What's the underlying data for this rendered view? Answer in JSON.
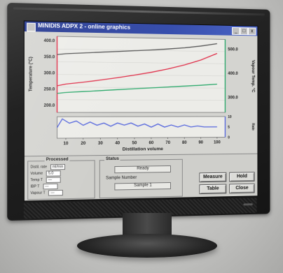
{
  "window": {
    "title": "MINIDIS ADPX 2 - online graphics",
    "minimize_label": "_",
    "maximize_label": "□",
    "close_label": "x"
  },
  "chart_data": {
    "type": "line",
    "xlabel": "Distillation volume",
    "ylabel_left": "Temperature (°C)",
    "ylabel_right": "Vapour Temp. °C",
    "ylabel_right_lower": "Rate",
    "x_ticks": [
      "10",
      "20",
      "30",
      "40",
      "50",
      "60",
      "70",
      "80",
      "90",
      "100"
    ],
    "y_left_ticks": [
      "200.0",
      "250.0",
      "300.0",
      "350.0",
      "400.0"
    ],
    "y_right_ticks": [
      "300.0",
      "400.0",
      "500.0"
    ],
    "y_rate_ticks": [
      "0",
      "5",
      "10"
    ],
    "xlim": [
      5,
      105
    ],
    "ylim": [
      150,
      450
    ],
    "ylim_rate": [
      0,
      10
    ],
    "series": [
      {
        "color": "#555555",
        "x": [
          5,
          10,
          20,
          30,
          40,
          50,
          60,
          70,
          80,
          90,
          100
        ],
        "y": [
          378,
          382,
          386,
          390,
          394,
          398,
          402,
          407,
          413,
          421,
          432
        ]
      },
      {
        "color": "#e0304a",
        "x": [
          5,
          10,
          20,
          30,
          40,
          50,
          60,
          70,
          80,
          90,
          100
        ],
        "y": [
          255,
          262,
          270,
          279,
          289,
          300,
          312,
          326,
          343,
          364,
          392
        ]
      },
      {
        "color": "#2aa86a",
        "x": [
          5,
          10,
          20,
          30,
          40,
          50,
          60,
          70,
          80,
          90,
          100
        ],
        "y": [
          225,
          229,
          233,
          237,
          241,
          245,
          249,
          253,
          257,
          261,
          266
        ]
      }
    ],
    "rate_series": {
      "color": "#5566dd",
      "x": [
        5,
        8,
        12,
        16,
        20,
        24,
        28,
        32,
        36,
        40,
        44,
        48,
        52,
        56,
        60,
        64,
        68,
        72,
        76,
        80,
        84,
        88,
        92,
        96,
        100
      ],
      "y": [
        5,
        9,
        7,
        8,
        6,
        7.5,
        6,
        7,
        5.5,
        7,
        6,
        7,
        5.5,
        6.5,
        5,
        6.5,
        5,
        6,
        5,
        6,
        5,
        5.5,
        5,
        5,
        5
      ]
    },
    "colors": {
      "left_axis": "#e0304a",
      "right_axis": "#2aa86a",
      "rate_axis": "#5566dd"
    }
  },
  "panel": {
    "processed": {
      "title": "Processed",
      "rows": [
        {
          "label": "Distil. rate",
          "value": "ml/min"
        },
        {
          "label": "Volume",
          "value": "5.0"
        },
        {
          "label": "Temp T",
          "value": "—"
        },
        {
          "label": "IBP T",
          "value": "—"
        },
        {
          "label": "Vapour T",
          "value": "—"
        }
      ]
    },
    "status": {
      "title": "Status",
      "state": "Ready",
      "sample_label": "Sample Number",
      "sample_value": "Sample 1"
    },
    "buttons": {
      "measure": "Measure",
      "hold": "Hold",
      "table": "Table",
      "close": "Close"
    }
  }
}
